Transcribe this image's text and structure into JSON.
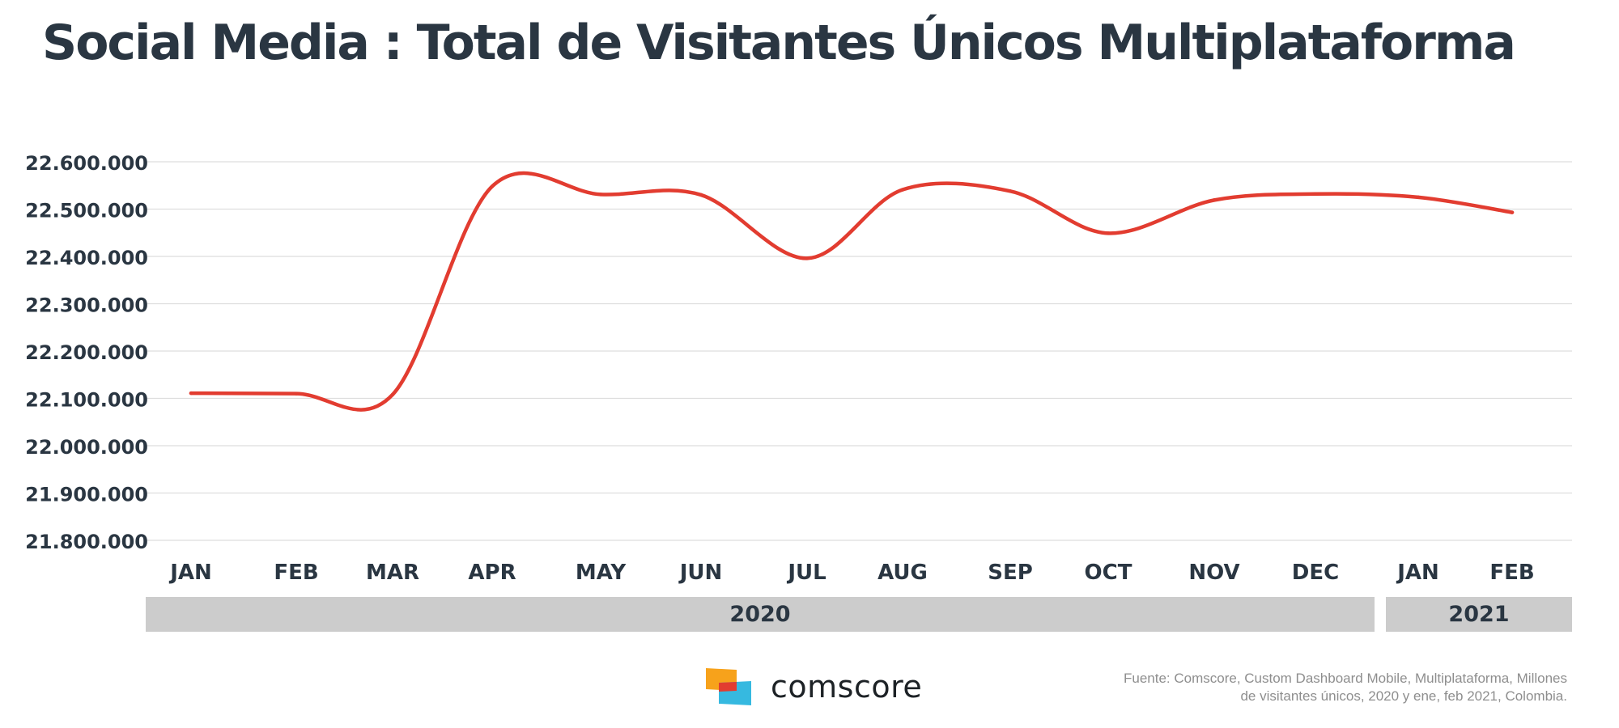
{
  "title": "Social Media : Total de Visitantes Únicos  Multiplataforma",
  "colors": {
    "line": "#e23c30",
    "text": "#2a3642",
    "grid": "#dddddd",
    "year_bar": "#cccccc"
  },
  "chart_data": {
    "type": "line",
    "title": "Social Media : Total de Visitantes Únicos  Multiplataforma",
    "categories": [
      "JAN",
      "FEB",
      "MAR",
      "APR",
      "MAY",
      "JUN",
      "JUL",
      "AUG",
      "SEP",
      "OCT",
      "NOV",
      "DEC",
      "JAN",
      "FEB"
    ],
    "values": [
      22111000,
      22110000,
      22108000,
      22548000,
      22531000,
      22530000,
      22396000,
      22541000,
      22538000,
      22449000,
      22519000,
      22532000,
      22525000,
      22493000
    ],
    "y_ticks": [
      "22.600.000",
      "22.500.000",
      "22.400.000",
      "22.300.000",
      "22.200.000",
      "22.100.000",
      "22.000.000",
      "21.900.000",
      "21.800.000"
    ],
    "ylim": [
      21800000,
      22600000
    ],
    "grid": true,
    "year_groups": [
      {
        "label": "2020",
        "months": 12
      },
      {
        "label": "2021",
        "months": 2
      }
    ]
  },
  "logo": {
    "text": "comscore",
    "icon": "comscore-logo-icon"
  },
  "source": {
    "line1": "Fuente: Comscore, Custom Dashboard Mobile, Multiplataforma,  Millones",
    "line2": "de visitantes únicos, 2020 y ene, feb 2021, Colombia."
  }
}
